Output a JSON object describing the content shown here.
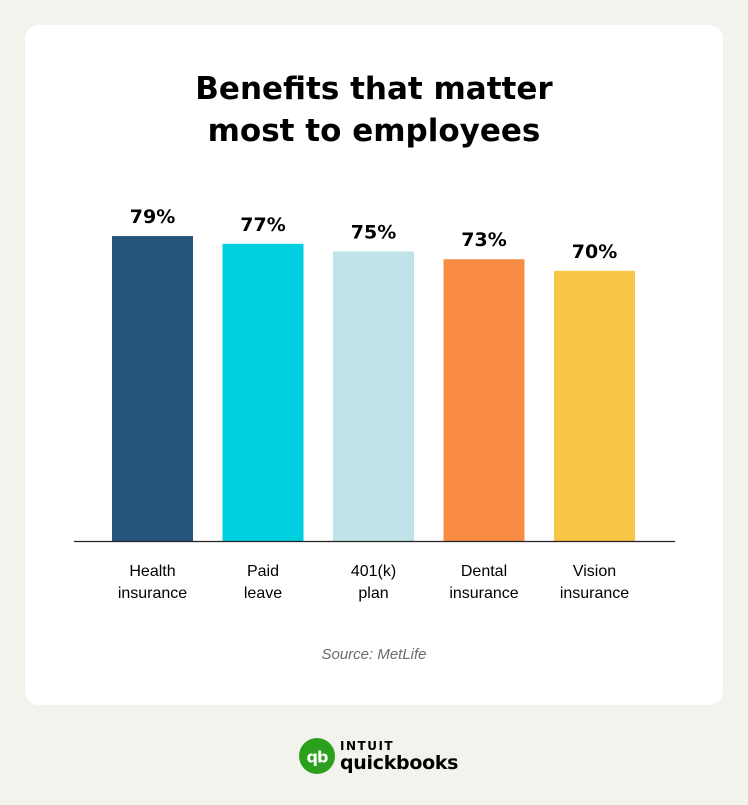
{
  "title_lines": [
    "Benefits that matter",
    "most to employees"
  ],
  "source": "Source: MetLife",
  "brand": {
    "intuit": "INTUIT",
    "product": "quickbooks",
    "logo_text": "qb",
    "logo_color": "#2ca01c"
  },
  "chart_data": {
    "type": "bar",
    "title": "Benefits that matter most to employees",
    "categories": [
      [
        "Health",
        "insurance"
      ],
      [
        "Paid",
        "leave"
      ],
      [
        "401(k)",
        "plan"
      ],
      [
        "Dental",
        "insurance"
      ],
      [
        "Vision",
        "insurance"
      ]
    ],
    "values": [
      79,
      77,
      75,
      73,
      70
    ],
    "value_labels": [
      "79%",
      "77%",
      "75%",
      "73%",
      "70%"
    ],
    "colors": [
      "#26547c",
      "#00cfe0",
      "#bee3e8",
      "#f98c45",
      "#f8c646"
    ],
    "ylim": [
      0,
      100
    ],
    "grid": false,
    "legend": "none"
  }
}
